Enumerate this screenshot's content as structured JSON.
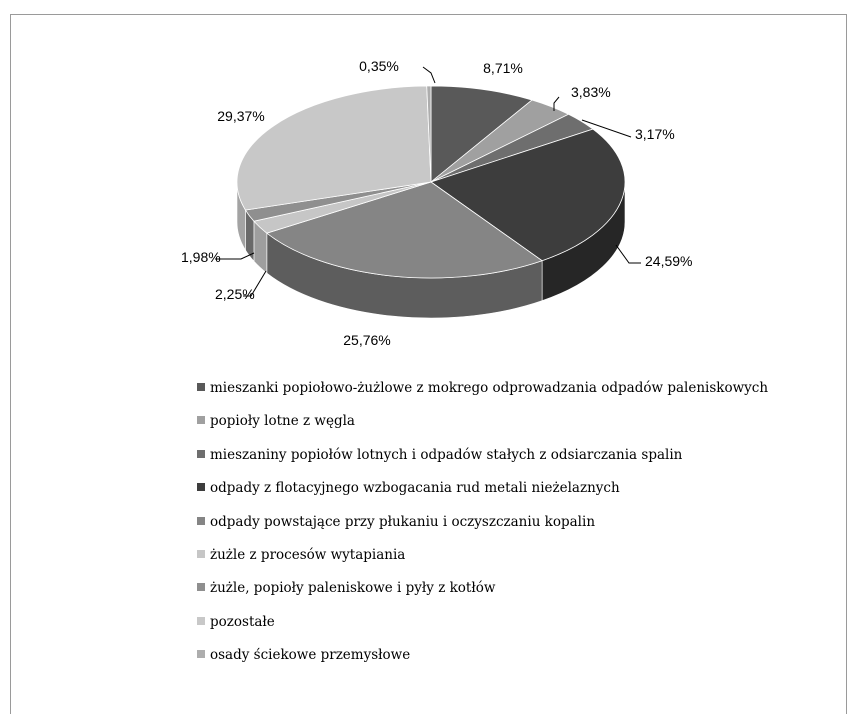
{
  "chart_data": {
    "type": "pie",
    "title": "",
    "series": [
      {
        "label": "mieszanki popiołowo-żużlowe z mokrego odprowadzania odpadów paleniskowych",
        "value": 8.71,
        "value_label": "8,71%",
        "color": "#595959",
        "side_color": "#3e3e3e"
      },
      {
        "label": "popioły lotne z węgla",
        "value": 3.83,
        "value_label": "3,83%",
        "color": "#a0a0a0",
        "side_color": "#777777"
      },
      {
        "label": "mieszaniny popiołów lotnych i odpadów stałych z odsiarczania spalin",
        "value": 3.17,
        "value_label": "3,17%",
        "color": "#6e6e6e",
        "side_color": "#4f4f4f"
      },
      {
        "label": "odpady z flotacyjnego wzbogacania rud metali nieżelaznych",
        "value": 24.59,
        "value_label": "24,59%",
        "color": "#3d3d3d",
        "side_color": "#262626"
      },
      {
        "label": "odpady powstające przy płukaniu i oczyszczaniu kopalin",
        "value": 25.76,
        "value_label": "25,76%",
        "color": "#858585",
        "side_color": "#5d5d5d"
      },
      {
        "label": "żużle z procesów wytapiania",
        "value": 2.25,
        "value_label": "2,25%",
        "color": "#c6c6c6",
        "side_color": "#9e9e9e"
      },
      {
        "label": "żużle, popioły paleniskowe i pyły z kotłów",
        "value": 1.98,
        "value_label": "1,98%",
        "color": "#8f8f8f",
        "side_color": "#6a6a6a"
      },
      {
        "label": "pozostałe",
        "value": 29.37,
        "value_label": "29,37%",
        "color": "#c8c8c8",
        "side_color": "#a3a3a3"
      },
      {
        "label": "osady ściekowe przemysłowe",
        "value": 0.35,
        "value_label": "0,35%",
        "color": "#adadad",
        "side_color": "#8a8a8a"
      }
    ],
    "legend_position": "bottom",
    "three_d": true
  }
}
